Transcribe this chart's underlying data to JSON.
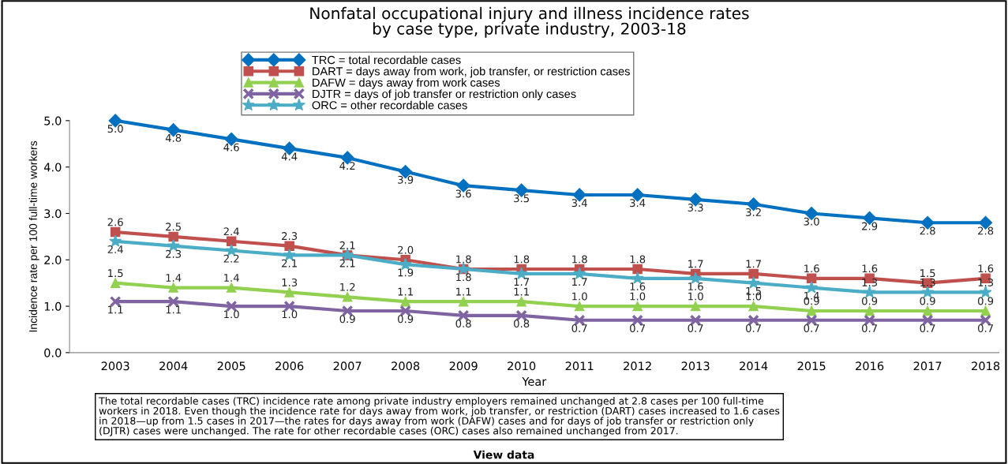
{
  "chart_data": {
    "type": "line",
    "title": "Nonfatal occupational injury and illness incidence rates\nby case type, private industry, 2003-18",
    "xlabel": "Year",
    "ylabel": "Incidence rate per 100 full-time workers",
    "categories": [
      "2003",
      "2004",
      "2005",
      "2006",
      "2007",
      "2008",
      "2009",
      "2010",
      "2011",
      "2012",
      "2013",
      "2014",
      "2015",
      "2016",
      "2017",
      "2018"
    ],
    "series": [
      {
        "name": "TRC = total recordable cases",
        "color": "#0070c0",
        "marker": "diamond",
        "values": [
          5.0,
          4.8,
          4.6,
          4.4,
          4.2,
          3.9,
          3.6,
          3.5,
          3.4,
          3.4,
          3.3,
          3.2,
          3.0,
          2.9,
          2.8,
          2.8
        ],
        "value_labels": [
          "5.0",
          "4.8",
          "4.6",
          "4.4",
          "4.2",
          "3.9",
          "3.6",
          "3.5",
          "3.4",
          "3.4",
          "3.3",
          "3.2",
          "3.0",
          "2.9",
          "2.8",
          "2.8"
        ]
      },
      {
        "name": "DART = days away from work, job transfer, or restriction cases",
        "color": "#c0504d",
        "marker": "square",
        "values": [
          2.6,
          2.5,
          2.4,
          2.3,
          2.1,
          2.0,
          1.8,
          1.8,
          1.8,
          1.8,
          1.7,
          1.7,
          1.6,
          1.6,
          1.5,
          1.6
        ],
        "value_labels": [
          "2.6",
          "2.5",
          "2.4",
          "2.3",
          "2.1",
          "2.0",
          "1.8",
          "1.8",
          "1.8",
          "1.8",
          "1.7",
          "1.7",
          "1.6",
          "1.6",
          "1.5",
          "1.6"
        ]
      },
      {
        "name": "DAFW = days away from work cases",
        "color": "#92d050",
        "marker": "triangle",
        "values": [
          1.5,
          1.4,
          1.4,
          1.3,
          1.2,
          1.1,
          1.1,
          1.1,
          1.0,
          1.0,
          1.0,
          1.0,
          0.9,
          0.9,
          0.9,
          0.9
        ],
        "value_labels": [
          "1.5",
          "1.4",
          "1.4",
          "1.3",
          "1.2",
          "1.1",
          "1.1",
          "1.1",
          "1.0",
          "1.0",
          "1.0",
          "1.0",
          "0.9",
          "0.9",
          "0.9",
          "0.9"
        ]
      },
      {
        "name": "DJTR = days of job transfer or restriction only cases",
        "color": "#8064a2",
        "marker": "cross",
        "values": [
          1.1,
          1.1,
          1.0,
          1.0,
          0.9,
          0.9,
          0.8,
          0.8,
          0.7,
          0.7,
          0.7,
          0.7,
          0.7,
          0.7,
          0.7,
          0.7
        ],
        "value_labels": [
          "1.1",
          "1.1",
          "1.0",
          "1.0",
          "0.9",
          "0.9",
          "0.8",
          "0.8",
          "0.7",
          "0.7",
          "0.7",
          "0.7",
          "0.7",
          "0.7",
          "0.7",
          "0.7"
        ]
      },
      {
        "name": "ORC = other recordable cases",
        "color": "#4bacc6",
        "marker": "star",
        "values": [
          2.4,
          2.3,
          2.2,
          2.1,
          2.1,
          1.9,
          1.8,
          1.7,
          1.7,
          1.6,
          1.6,
          1.5,
          1.4,
          1.3,
          1.3,
          1.3
        ],
        "value_labels": [
          "2.4",
          "2.3",
          "2.2",
          "2.1",
          "2.1",
          "1.9",
          "1.8",
          "1.7",
          "1.7",
          "1.6",
          "1.6",
          "1.5",
          "1.4",
          "1.3",
          "1.3",
          "1.3"
        ]
      }
    ],
    "ylim": [
      0,
      5
    ],
    "yticks": [
      {
        "value": 0,
        "label": "0.0"
      },
      {
        "value": 1,
        "label": "1.0"
      },
      {
        "value": 2,
        "label": "2.0"
      },
      {
        "value": 3,
        "label": "3.0"
      },
      {
        "value": 4,
        "label": "4.0"
      },
      {
        "value": 5,
        "label": "5.0"
      }
    ],
    "grid": false,
    "legend": "top",
    "line_style": "solid",
    "annotations": [
      "The total recordable cases (TRC) incidence rate among private industry employers remained unchanged at 2.8 cases per 100 full-time\nworkers in 2018. Even though the incidence rate for days away from work, job transfer, or restriction (DART) cases increased to 1.6 cases\nin 2018—up from 1.5 cases in 2017—the rates for days away from work (DAFW) cases and for days of job transfer or restriction only\n(DJTR) cases were unchanged. The rate for other recordable cases (ORC) cases also remained unchanged from 2017.",
      "View data"
    ]
  }
}
